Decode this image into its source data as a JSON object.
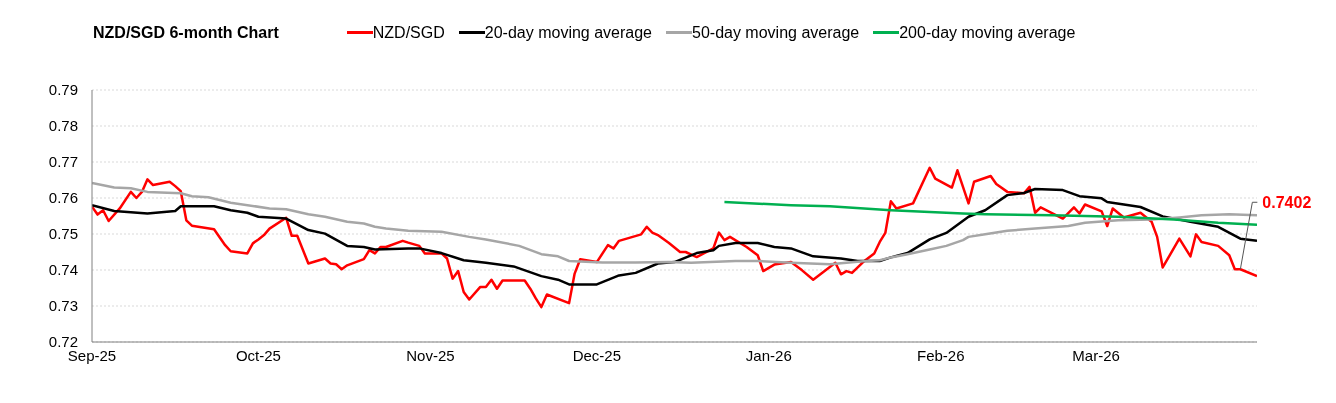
{
  "chart_data": {
    "type": "line",
    "title": "NZD/SGD 6-month Chart",
    "legend": "top",
    "grid": "y",
    "marker": "none",
    "line_style": "solid",
    "xlim": [
      "2025-09-01",
      "2026-03-30"
    ],
    "xticks": [
      {
        "value": "2025-09-01",
        "label": "Sep-25"
      },
      {
        "value": "2025-10-01",
        "label": "Oct-25"
      },
      {
        "value": "2025-11-01",
        "label": "Nov-25"
      },
      {
        "value": "2025-12-01",
        "label": "Dec-25"
      },
      {
        "value": "2026-01-01",
        "label": "Jan-26"
      },
      {
        "value": "2026-02-01",
        "label": "Feb-26"
      },
      {
        "value": "2026-03-01",
        "label": "Mar-26"
      }
    ],
    "ylim": [
      0.72,
      0.79
    ],
    "yticks": [
      {
        "value": 0.72,
        "label": "0.72"
      },
      {
        "value": 0.73,
        "label": "0.73"
      },
      {
        "value": 0.74,
        "label": "0.74"
      },
      {
        "value": 0.75,
        "label": "0.75"
      },
      {
        "value": 0.76,
        "label": "0.76"
      },
      {
        "value": 0.77,
        "label": "0.77"
      },
      {
        "value": 0.78,
        "label": "0.78"
      },
      {
        "value": 0.79,
        "label": "0.79"
      }
    ],
    "annotations": [
      {
        "text": "0.7402",
        "x": "2026-03-27",
        "y": 0.7402
      }
    ],
    "series": [
      {
        "name": "NZD/SGD",
        "color": "#ff0000",
        "x": [
          "2025-09-01",
          "2025-09-02",
          "2025-09-03",
          "2025-09-04",
          "2025-09-06",
          "2025-09-08",
          "2025-09-09",
          "2025-09-10",
          "2025-09-11",
          "2025-09-12",
          "2025-09-15",
          "2025-09-16",
          "2025-09-17",
          "2025-09-18",
          "2025-09-19",
          "2025-09-23",
          "2025-09-25",
          "2025-09-26",
          "2025-09-29",
          "2025-09-30",
          "2025-10-01",
          "2025-10-02",
          "2025-10-03",
          "2025-10-06",
          "2025-10-07",
          "2025-10-08",
          "2025-10-10",
          "2025-10-13",
          "2025-10-14",
          "2025-10-15",
          "2025-10-16",
          "2025-10-17",
          "2025-10-20",
          "2025-10-21",
          "2025-10-22",
          "2025-10-23",
          "2025-10-24",
          "2025-10-27",
          "2025-10-28",
          "2025-10-30",
          "2025-10-31",
          "2025-11-03",
          "2025-11-04",
          "2025-11-05",
          "2025-11-06",
          "2025-11-07",
          "2025-11-08",
          "2025-11-10",
          "2025-11-11",
          "2025-11-12",
          "2025-11-13",
          "2025-11-14",
          "2025-11-18",
          "2025-11-19",
          "2025-11-20",
          "2025-11-21",
          "2025-11-22",
          "2025-11-26",
          "2025-11-27",
          "2025-11-28",
          "2025-12-01",
          "2025-12-03",
          "2025-12-04",
          "2025-12-05",
          "2025-12-09",
          "2025-12-10",
          "2025-12-11",
          "2025-12-12",
          "2025-12-14",
          "2025-12-16",
          "2025-12-17",
          "2025-12-19",
          "2025-12-22",
          "2025-12-23",
          "2025-12-24",
          "2025-12-25",
          "2025-12-28",
          "2025-12-30",
          "2025-12-31",
          "2026-01-02",
          "2026-01-05",
          "2026-01-07",
          "2026-01-09",
          "2026-01-13",
          "2026-01-14",
          "2026-01-15",
          "2026-01-16",
          "2026-01-18",
          "2026-01-20",
          "2026-01-21",
          "2026-01-22",
          "2026-01-23",
          "2026-01-24",
          "2026-01-27",
          "2026-01-30",
          "2026-01-31",
          "2026-02-03",
          "2026-02-04",
          "2026-02-06",
          "2026-02-07",
          "2026-02-10",
          "2026-02-11",
          "2026-02-13",
          "2026-02-16",
          "2026-02-17",
          "2026-02-18",
          "2026-02-19",
          "2026-02-23",
          "2026-02-25",
          "2026-02-26",
          "2026-02-27",
          "2026-03-02",
          "2026-03-03",
          "2026-03-04",
          "2026-03-06",
          "2026-03-09",
          "2026-03-11",
          "2026-03-12",
          "2026-03-13",
          "2026-03-16",
          "2026-03-18",
          "2026-03-19",
          "2026-03-20",
          "2026-03-23",
          "2026-03-25",
          "2026-03-26",
          "2026-03-27",
          "2026-03-30"
        ],
        "values": [
          0.7576,
          0.7554,
          0.7566,
          0.7536,
          0.7571,
          0.7617,
          0.76,
          0.7617,
          0.7652,
          0.7636,
          0.7645,
          0.7633,
          0.7619,
          0.7538,
          0.7523,
          0.7513,
          0.7469,
          0.7452,
          0.7446,
          0.7474,
          0.7485,
          0.7497,
          0.7515,
          0.7545,
          0.7495,
          0.7495,
          0.7418,
          0.7432,
          0.7418,
          0.7416,
          0.7402,
          0.7413,
          0.743,
          0.7455,
          0.7446,
          0.7464,
          0.7464,
          0.7481,
          0.7476,
          0.7467,
          0.7446,
          0.7446,
          0.7432,
          0.7376,
          0.7397,
          0.7339,
          0.7318,
          0.7353,
          0.7353,
          0.7373,
          0.7348,
          0.7371,
          0.7371,
          0.7348,
          0.7321,
          0.7297,
          0.7332,
          0.7308,
          0.739,
          0.743,
          0.7422,
          0.7469,
          0.746,
          0.7481,
          0.7499,
          0.752,
          0.7504,
          0.7497,
          0.7475,
          0.745,
          0.745,
          0.7436,
          0.746,
          0.7504,
          0.7483,
          0.7492,
          0.7464,
          0.7441,
          0.7397,
          0.7415,
          0.7422,
          0.7399,
          0.7373,
          0.742,
          0.7388,
          0.7397,
          0.7392,
          0.7422,
          0.7446,
          0.7478,
          0.7503,
          0.7591,
          0.7571,
          0.7585,
          0.7684,
          0.7654,
          0.7629,
          0.7677,
          0.7585,
          0.7645,
          0.7661,
          0.7639,
          0.7617,
          0.7613,
          0.7631,
          0.7559,
          0.7574,
          0.7543,
          0.7574,
          0.7557,
          0.7582,
          0.7563,
          0.7522,
          0.7571,
          0.7546,
          0.7559,
          0.7534,
          0.7492,
          0.7407,
          0.7487,
          0.7438,
          0.7499,
          0.7478,
          0.7467,
          0.7441,
          0.7402,
          0.7402,
          0.7383
        ]
      },
      {
        "name": "20-day moving average",
        "color": "#000000",
        "x": [
          "2025-09-01",
          "2025-09-05",
          "2025-09-11",
          "2025-09-16",
          "2025-09-17",
          "2025-09-23",
          "2025-09-26",
          "2025-09-29",
          "2025-10-01",
          "2025-10-06",
          "2025-10-10",
          "2025-10-13",
          "2025-10-17",
          "2025-10-20",
          "2025-10-22",
          "2025-10-28",
          "2025-10-30",
          "2025-11-03",
          "2025-11-07",
          "2025-11-11",
          "2025-11-16",
          "2025-11-21",
          "2025-11-24",
          "2025-11-26",
          "2025-12-01",
          "2025-12-05",
          "2025-12-08",
          "2025-12-12",
          "2025-12-15",
          "2025-12-19",
          "2025-12-22",
          "2025-12-23",
          "2025-12-26",
          "2025-12-30",
          "2026-01-02",
          "2026-01-05",
          "2026-01-09",
          "2026-01-14",
          "2026-01-17",
          "2026-01-21",
          "2026-01-23",
          "2026-01-26",
          "2026-01-30",
          "2026-02-02",
          "2026-02-06",
          "2026-02-09",
          "2026-02-13",
          "2026-02-16",
          "2026-02-18",
          "2026-02-23",
          "2026-02-26",
          "2026-03-02",
          "2026-03-03",
          "2026-03-09",
          "2026-03-13",
          "2026-03-18",
          "2026-03-23",
          "2026-03-27",
          "2026-03-30"
        ],
        "values": [
          0.758,
          0.7564,
          0.7557,
          0.7564,
          0.7577,
          0.7577,
          0.7566,
          0.7559,
          0.7548,
          0.7543,
          0.7511,
          0.7501,
          0.7467,
          0.7464,
          0.7457,
          0.746,
          0.746,
          0.7447,
          0.7427,
          0.742,
          0.741,
          0.7383,
          0.7373,
          0.736,
          0.736,
          0.7385,
          0.7392,
          0.7418,
          0.7422,
          0.7447,
          0.7455,
          0.7467,
          0.7475,
          0.7475,
          0.7464,
          0.746,
          0.7438,
          0.7432,
          0.7425,
          0.7425,
          0.7435,
          0.7447,
          0.7485,
          0.7503,
          0.7548,
          0.7566,
          0.7608,
          0.7614,
          0.7625,
          0.7622,
          0.7605,
          0.7599,
          0.7589,
          0.7575,
          0.7549,
          0.7534,
          0.752,
          0.7487,
          0.7481
        ]
      },
      {
        "name": "50-day moving average",
        "color": "#a6a6a6",
        "x": [
          "2025-09-01",
          "2025-09-05",
          "2025-09-08",
          "2025-09-11",
          "2025-09-17",
          "2025-09-19",
          "2025-09-22",
          "2025-09-26",
          "2025-10-03",
          "2025-10-06",
          "2025-10-10",
          "2025-10-13",
          "2025-10-17",
          "2025-10-20",
          "2025-10-22",
          "2025-10-24",
          "2025-10-28",
          "2025-11-03",
          "2025-11-08",
          "2025-11-11",
          "2025-11-17",
          "2025-11-21",
          "2025-11-24",
          "2025-11-26",
          "2025-12-02",
          "2025-12-08",
          "2025-12-14",
          "2025-12-18",
          "2025-12-26",
          "2025-12-30",
          "2026-01-05",
          "2026-01-12",
          "2026-01-18",
          "2026-01-21",
          "2026-01-23",
          "2026-01-26",
          "2026-01-30",
          "2026-02-02",
          "2026-02-05",
          "2026-02-06",
          "2026-02-09",
          "2026-02-13",
          "2026-02-18",
          "2026-02-24",
          "2026-02-27",
          "2026-03-05",
          "2026-03-11",
          "2026-03-16",
          "2026-03-20",
          "2026-03-25",
          "2026-03-30"
        ],
        "values": [
          0.7642,
          0.7629,
          0.7627,
          0.7617,
          0.7613,
          0.7605,
          0.7602,
          0.7587,
          0.7571,
          0.7569,
          0.7555,
          0.7548,
          0.7534,
          0.7529,
          0.752,
          0.7515,
          0.7509,
          0.7506,
          0.7492,
          0.7485,
          0.7467,
          0.7444,
          0.7438,
          0.7425,
          0.7421,
          0.7421,
          0.7422,
          0.742,
          0.7425,
          0.7425,
          0.742,
          0.7416,
          0.7424,
          0.7427,
          0.7435,
          0.7444,
          0.7457,
          0.7467,
          0.7483,
          0.7492,
          0.7499,
          0.7509,
          0.7515,
          0.7522,
          0.7531,
          0.7538,
          0.754,
          0.7546,
          0.7552,
          0.7555,
          0.7552
        ]
      },
      {
        "name": "200-day moving average",
        "color": "#00b050",
        "x": [
          "2025-12-24",
          "2026-01-05",
          "2026-01-12",
          "2026-01-23",
          "2026-02-05",
          "2026-02-09",
          "2026-02-21",
          "2026-03-05",
          "2026-03-15",
          "2026-03-23",
          "2026-03-30"
        ],
        "values": [
          0.7589,
          0.758,
          0.7577,
          0.7566,
          0.7557,
          0.7555,
          0.7552,
          0.7548,
          0.754,
          0.7531,
          0.7526
        ]
      }
    ]
  }
}
